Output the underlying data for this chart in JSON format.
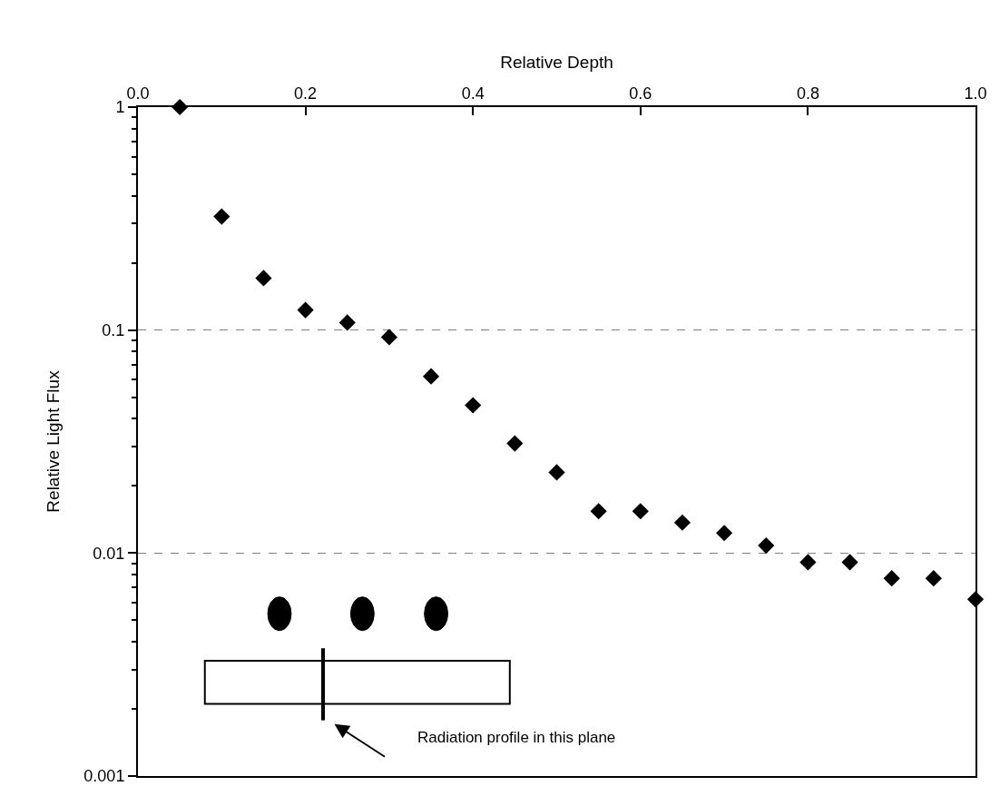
{
  "chart_data": {
    "type": "scatter",
    "xlabel": "Relative Depth",
    "ylabel": "Relative Light Flux",
    "x": [
      0.05,
      0.1,
      0.15,
      0.2,
      0.25,
      0.3,
      0.35,
      0.4,
      0.45,
      0.5,
      0.55,
      0.6,
      0.65,
      0.7,
      0.75,
      0.8,
      0.85,
      0.9,
      0.95,
      1.0
    ],
    "series": [
      {
        "color": "#000000",
        "values": [
          1.0,
          0.323,
          0.171,
          0.123,
          0.108,
          0.093,
          0.062,
          0.046,
          0.031,
          0.023,
          0.0154,
          0.0154,
          0.0137,
          0.0123,
          0.0108,
          0.0091,
          0.0091,
          0.0077,
          0.0077,
          0.0062
        ]
      }
    ],
    "xlim": [
      0,
      1
    ],
    "xticks": [
      {
        "value": 0,
        "label": "0.0"
      },
      {
        "value": 0.2,
        "label": "0.2"
      },
      {
        "value": 0.4,
        "label": "0.4"
      },
      {
        "value": 0.6,
        "label": "0.6"
      },
      {
        "value": 0.8,
        "label": "0.8"
      },
      {
        "value": 1,
        "label": "1.0"
      }
    ],
    "log": true,
    "ylim": [
      0.001,
      1
    ],
    "yticks": [
      0.001,
      0.01,
      0.1,
      1,
      {
        "value": 0.002,
        "label": null
      },
      {
        "value": 0.003,
        "label": null
      },
      {
        "value": 0.004,
        "label": null
      },
      {
        "value": 0.005,
        "label": null
      },
      {
        "value": 0.006,
        "label": null
      },
      {
        "value": 0.007,
        "label": null
      },
      {
        "value": 0.008,
        "label": null
      },
      {
        "value": 0.009,
        "label": null
      },
      {
        "value": 0.02,
        "label": null
      },
      {
        "value": 0.03,
        "label": null
      },
      {
        "value": 0.04,
        "label": null
      },
      {
        "value": 0.05,
        "label": null
      },
      {
        "value": 0.06,
        "label": null
      },
      {
        "value": 0.07,
        "label": null
      },
      {
        "value": 0.08,
        "label": null
      },
      {
        "value": 0.09,
        "label": null
      },
      {
        "value": 0.2,
        "label": null
      },
      {
        "value": 0.3,
        "label": null
      },
      {
        "value": 0.4,
        "label": null
      },
      {
        "value": 0.5,
        "label": null
      },
      {
        "value": 0.6,
        "label": null
      },
      {
        "value": 0.7,
        "label": null
      },
      {
        "value": 0.8,
        "label": null
      },
      {
        "value": 0.9,
        "label": null
      }
    ],
    "grid": "y",
    "marker": "diamond",
    "legend": false,
    "annotations": [
      "Radiation profile in this plane"
    ]
  }
}
